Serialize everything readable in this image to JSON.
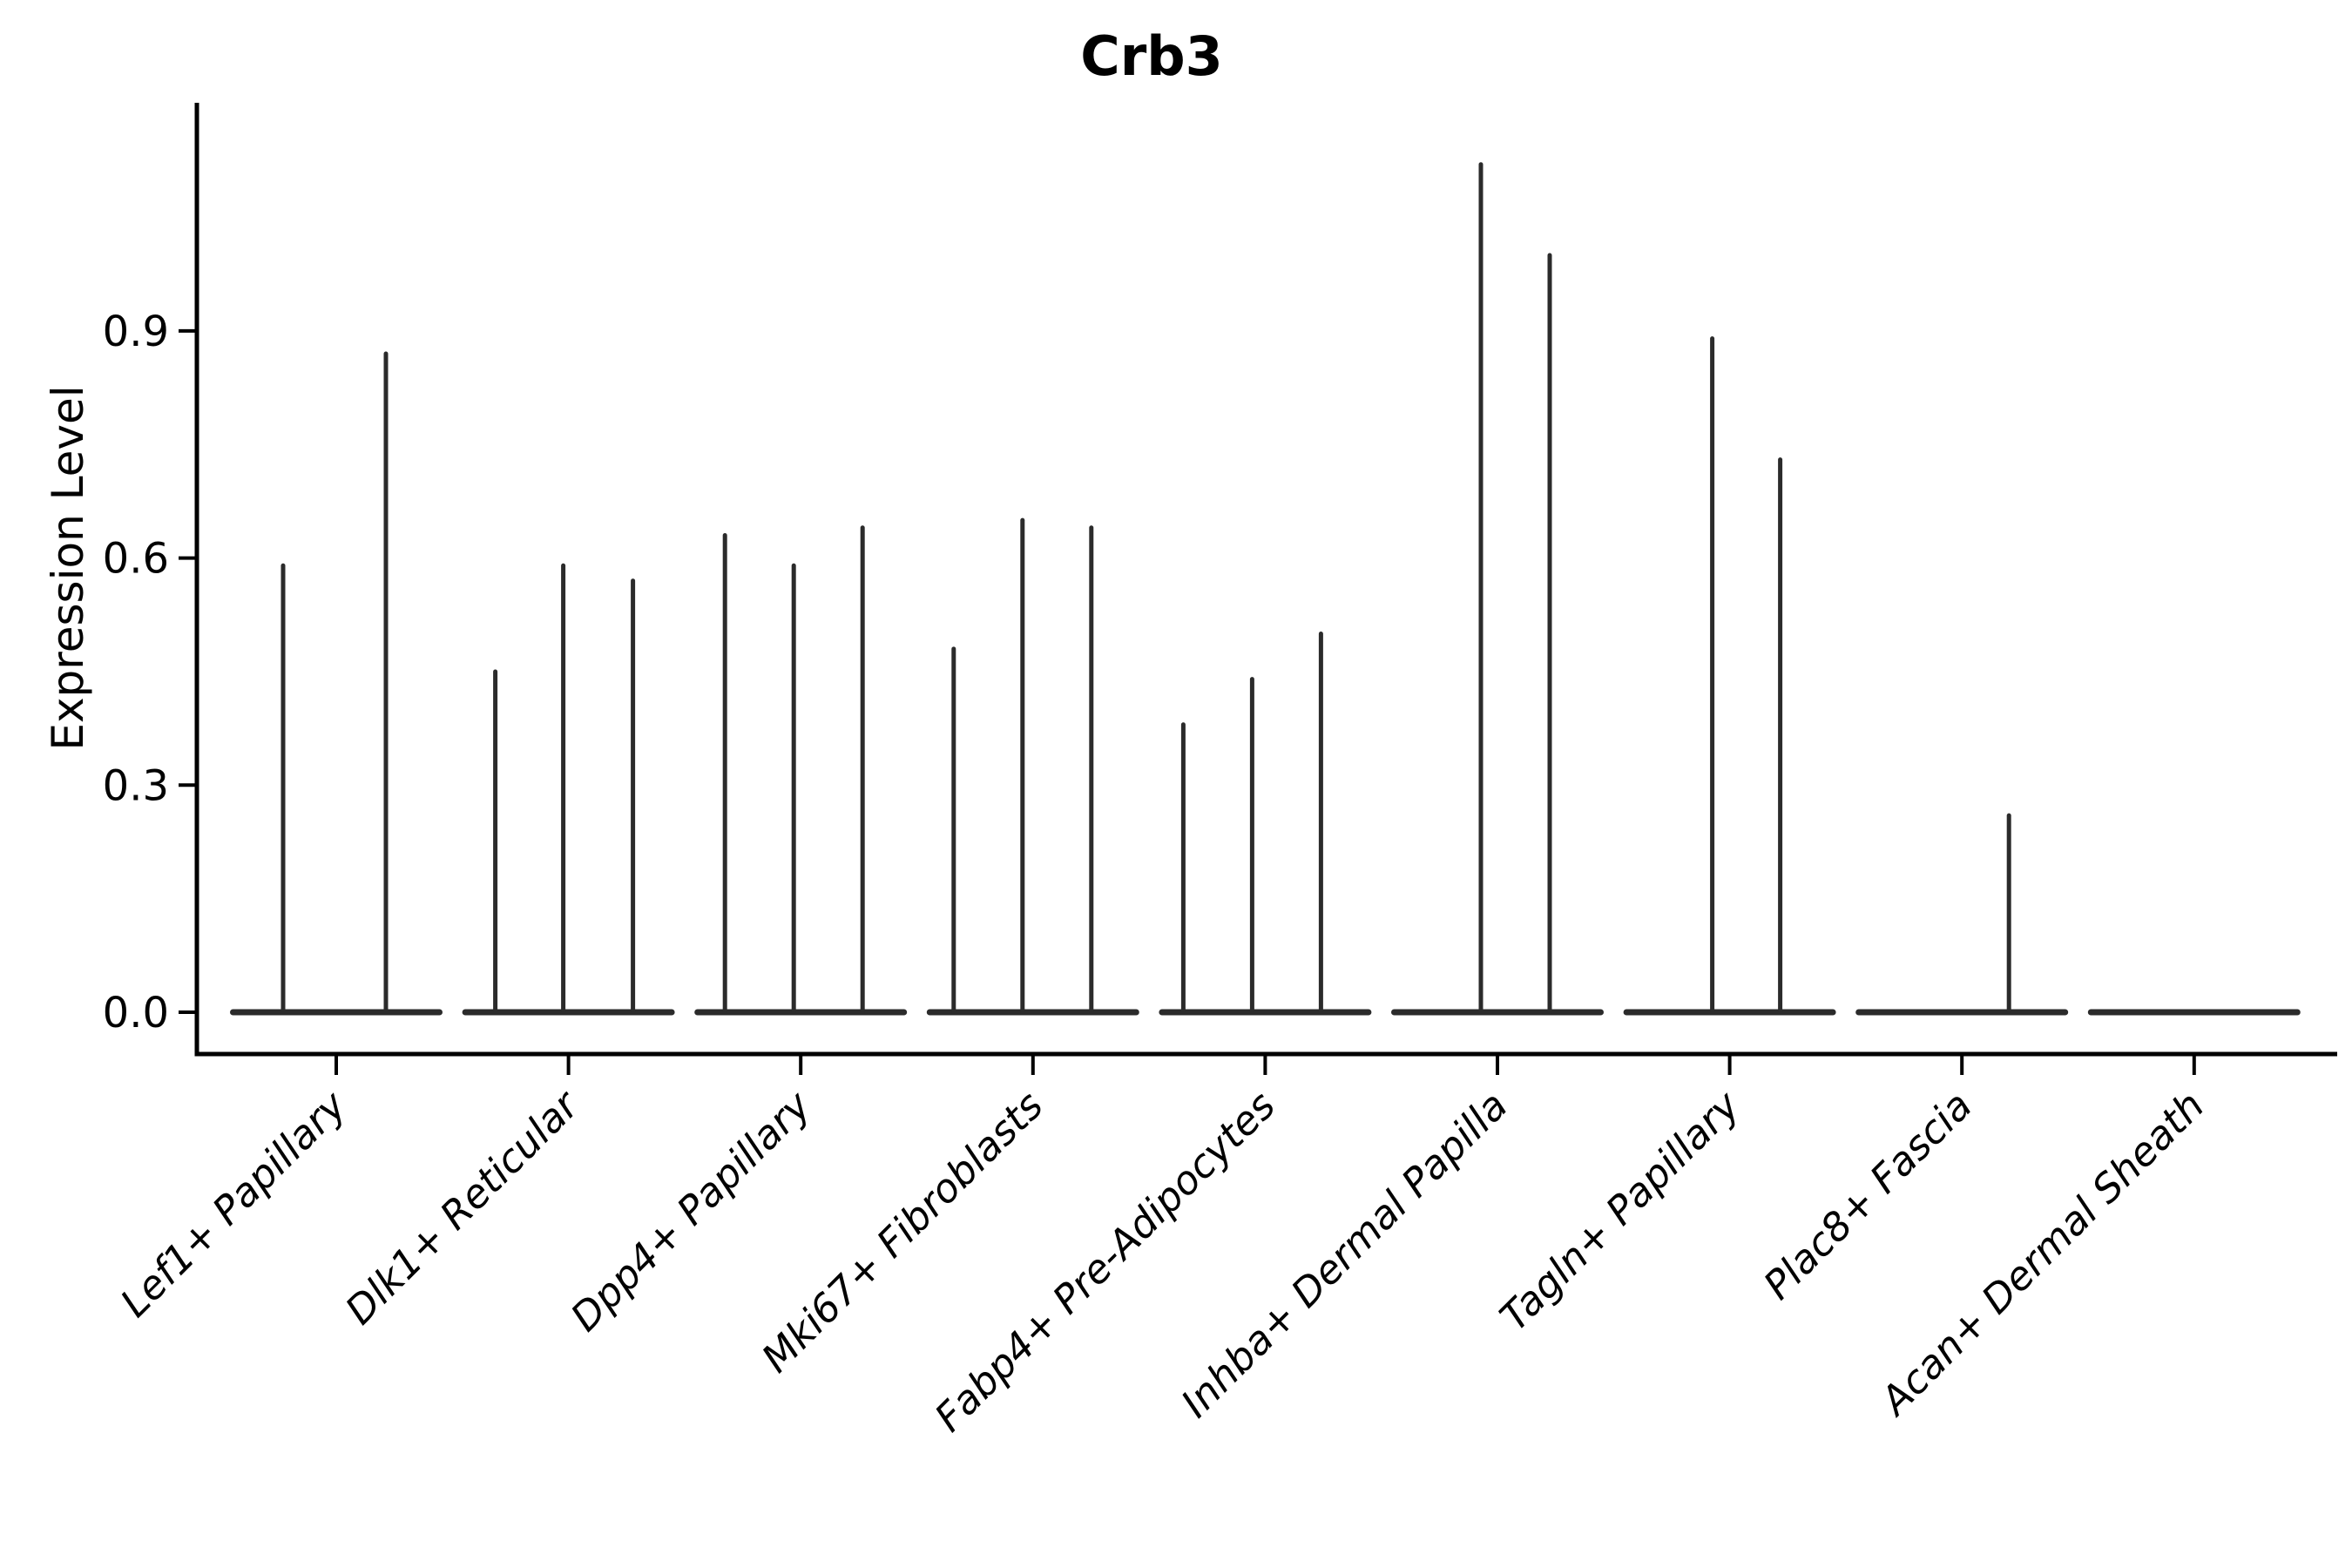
{
  "figure": {
    "background": "#ffffff"
  },
  "chart_data": {
    "type": "violin",
    "title": "Crb3",
    "ylabel": "Expression Level",
    "xlabel": "",
    "ylim": [
      0,
      1.17
    ],
    "grid": false,
    "legend": "none",
    "yticks": [
      {
        "label": "0.0",
        "value": 0.0
      },
      {
        "label": "0.3",
        "value": 0.3
      },
      {
        "label": "0.6",
        "value": 0.6
      },
      {
        "label": "0.9",
        "value": 0.9
      }
    ],
    "categories": [
      {
        "label": "Lef1+ Papillary",
        "violins": [
          {
            "offset": -61,
            "peak": 0.59
          },
          {
            "offset": 57,
            "peak": 0.87
          }
        ]
      },
      {
        "label": "Dlk1+ Reticular",
        "violins": [
          {
            "offset": -84,
            "peak": 0.45
          },
          {
            "offset": -6,
            "peak": 0.59
          },
          {
            "offset": 74,
            "peak": 0.57
          }
        ]
      },
      {
        "label": "Dpp4+ Papillary",
        "violins": [
          {
            "offset": -87,
            "peak": 0.63
          },
          {
            "offset": -8,
            "peak": 0.59
          },
          {
            "offset": 71,
            "peak": 0.64
          }
        ]
      },
      {
        "label": "Mki67+ Fibroblasts",
        "violins": [
          {
            "offset": -91,
            "peak": 0.48
          },
          {
            "offset": -12,
            "peak": 0.65
          },
          {
            "offset": 67,
            "peak": 0.64
          }
        ]
      },
      {
        "label": "Fabp4+ Pre-Adipocytes",
        "violins": [
          {
            "offset": -94,
            "peak": 0.38
          },
          {
            "offset": -15,
            "peak": 0.44
          },
          {
            "offset": 64,
            "peak": 0.5
          }
        ]
      },
      {
        "label": "Inhba+ Dermal Papilla",
        "violins": [
          {
            "offset": -19,
            "peak": 1.12
          },
          {
            "offset": 60,
            "peak": 1.0
          }
        ]
      },
      {
        "label": "Tagln+ Papillary",
        "violins": [
          {
            "offset": -20,
            "peak": 0.89
          },
          {
            "offset": 58,
            "peak": 0.73
          }
        ]
      },
      {
        "label": "Plac8+ Fascia",
        "violins": [
          {
            "offset": 54,
            "peak": 0.26
          }
        ]
      },
      {
        "label": "Acan+ Dermal Sheath",
        "violins": []
      }
    ],
    "colors": {
      "violin_line": "#2b2b2b",
      "axis": "#000000",
      "text": "#000000"
    }
  }
}
